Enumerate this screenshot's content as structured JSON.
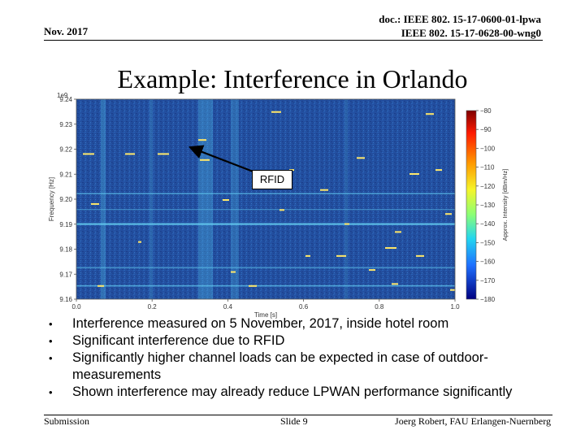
{
  "header": {
    "date": "Nov. 2017",
    "doc_line1": "doc.: IEEE 802. 15-17-0600-01-lpwa",
    "doc_line2": "IEEE 802. 15-17-0628-00-wng0"
  },
  "title": "Example: Interference in Orlando",
  "spectrogram": {
    "exponent_label": "1e9",
    "ylabel": "Frequency [Hz]",
    "xlabel": "Time [s]",
    "colorbar_label": "Approx. Intensity [dBm/Hz]",
    "y_ticks": [
      "9.24",
      "9.23",
      "9.22",
      "9.21",
      "9.20",
      "9.19",
      "9.18",
      "9.17",
      "9.16"
    ],
    "x_ticks": [
      "0.0",
      "0.2",
      "0.4",
      "0.6",
      "0.8",
      "1.0"
    ],
    "colorbar_ticks": [
      "−80",
      "−90",
      "−100",
      "−110",
      "−120",
      "−130",
      "−140",
      "−150",
      "−160",
      "−170",
      "−180"
    ],
    "annotation": "RFID",
    "colors": {
      "background": "#1f4f9e",
      "signal": "#ffe86a",
      "line": "#62c9ee",
      "arrow": "#000000"
    }
  },
  "bullets": [
    "Interference measured on 5 November, 2017, inside hotel room",
    "Significant interference due to RFID",
    "Significantly higher channel loads can be expected in case of outdoor-measurements",
    "Shown interference may already reduce LPWAN performance significantly"
  ],
  "bullet_symbol": "•",
  "footer": {
    "left": "Submission",
    "center": "Slide 9",
    "right": "Joerg Robert, FAU Erlangen-Nuernberg"
  }
}
